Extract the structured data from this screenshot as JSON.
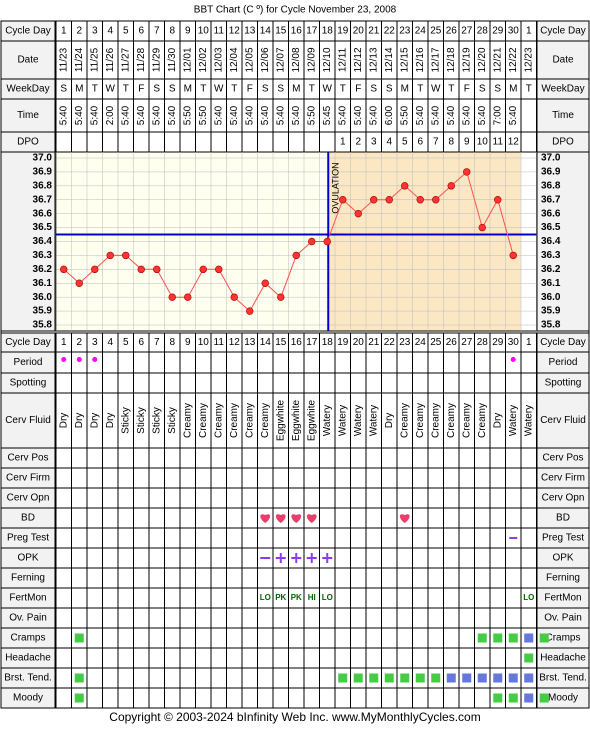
{
  "title": "BBT Chart (C º) for Cycle November 23, 2008",
  "copyright": "Copyright © 2003-2024 bInfinity Web Inc.    www.MyMonthlyCycles.com",
  "ovulation_label": "OVULATION",
  "colors": {
    "grid": "#000000",
    "label_bg": "#f2f2f2",
    "chart_pre": "#fffff0",
    "chart_post": "#fbe7c4",
    "line": "#ff5050",
    "point": "#ff3333",
    "cover": "#0000cc",
    "period": "#ff00ff",
    "heart": "#e8406a",
    "opk": "#8a3df0",
    "green": "#44cc44",
    "blue": "#6677dd",
    "fert": "#006600"
  },
  "row_labels": {
    "cycle_day": "Cycle Day",
    "date": "Date",
    "weekday": "WeekDay",
    "time": "Time",
    "dpo": "DPO",
    "period": "Period",
    "spotting": "Spotting",
    "cerv_fluid": "Cerv Fluid",
    "cerv_pos": "Cerv Pos",
    "cerv_firm": "Cerv Firm",
    "cerv_opn": "Cerv Opn",
    "bd": "BD",
    "preg_test": "Preg Test",
    "opk": "OPK",
    "ferning": "Ferning",
    "fertmon": "FertMon",
    "ov_pain": "Ov. Pain",
    "cramps": "Cramps",
    "headache": "Headache",
    "brst_tend": "Brst. Tend.",
    "moody": "Moody"
  },
  "cycle_days": [
    "1",
    "2",
    "3",
    "4",
    "5",
    "6",
    "7",
    "8",
    "9",
    "10",
    "11",
    "12",
    "13",
    "14",
    "15",
    "16",
    "17",
    "18",
    "19",
    "20",
    "21",
    "22",
    "23",
    "24",
    "25",
    "26",
    "27",
    "28",
    "29",
    "30",
    "1"
  ],
  "dates": [
    "11/23",
    "11/24",
    "11/25",
    "11/26",
    "11/27",
    "11/28",
    "11/29",
    "11/30",
    "12/01",
    "12/02",
    "12/03",
    "12/04",
    "12/05",
    "12/06",
    "12/07",
    "12/08",
    "12/09",
    "12/10",
    "12/11",
    "12/12",
    "12/13",
    "12/14",
    "12/15",
    "12/16",
    "12/17",
    "12/18",
    "12/19",
    "12/20",
    "12/21",
    "12/22",
    "12/23"
  ],
  "weekdays": [
    "S",
    "M",
    "T",
    "W",
    "T",
    "F",
    "S",
    "S",
    "M",
    "T",
    "W",
    "T",
    "F",
    "S",
    "S",
    "M",
    "T",
    "W",
    "T",
    "F",
    "S",
    "S",
    "M",
    "T",
    "W",
    "T",
    "F",
    "S",
    "S",
    "M",
    "T"
  ],
  "times": [
    "5:40",
    "5:40",
    "5:40",
    "2:00",
    "5:40",
    "5:40",
    "5:40",
    "5:40",
    "5:50",
    "5:50",
    "5:40",
    "5:40",
    "5:40",
    "5:40",
    "5:40",
    "5:40",
    "5:50",
    "5:45",
    "5:40",
    "5:40",
    "5:40",
    "6:00",
    "5:50",
    "5:40",
    "5:40",
    "5:40",
    "5:40",
    "5:40",
    "7:00",
    "5:40",
    ""
  ],
  "dpo": [
    "",
    "",
    "",
    "",
    "",
    "",
    "",
    "",
    "",
    "",
    "",
    "",
    "",
    "",
    "",
    "",
    "",
    "",
    "1",
    "2",
    "3",
    "4",
    "5",
    "6",
    "7",
    "8",
    "9",
    "10",
    "11",
    "12",
    ""
  ],
  "period": [
    true,
    true,
    true,
    false,
    false,
    false,
    false,
    false,
    false,
    false,
    false,
    false,
    false,
    false,
    false,
    false,
    false,
    false,
    false,
    false,
    false,
    false,
    false,
    false,
    false,
    false,
    false,
    false,
    false,
    true,
    false
  ],
  "cerv_fluid": [
    "Dry",
    "Dry",
    "Dry",
    "Dry",
    "Sticky",
    "Sticky",
    "Sticky",
    "Sticky",
    "Creamy",
    "Creamy",
    "Creamy",
    "Creamy",
    "Creamy",
    "Creamy",
    "Eggwhite",
    "Eggwhite",
    "Eggwhite",
    "Watery",
    "Watery",
    "Watery",
    "Watery",
    "Dry",
    "Creamy",
    "Creamy",
    "Creamy",
    "Creamy",
    "Creamy",
    "Creamy",
    "Dry",
    "Watery",
    "Watery"
  ],
  "bd": [
    false,
    false,
    false,
    false,
    false,
    false,
    false,
    false,
    false,
    false,
    false,
    false,
    false,
    true,
    true,
    true,
    true,
    false,
    false,
    false,
    false,
    false,
    true,
    false,
    false,
    false,
    false,
    false,
    false,
    false,
    false
  ],
  "preg_test": [
    "",
    "",
    "",
    "",
    "",
    "",
    "",
    "",
    "",
    "",
    "",
    "",
    "",
    "",
    "",
    "",
    "",
    "",
    "",
    "",
    "",
    "",
    "",
    "",
    "",
    "",
    "",
    "",
    "",
    "-",
    ""
  ],
  "opk": [
    "",
    "",
    "",
    "",
    "",
    "",
    "",
    "",
    "",
    "",
    "",
    "",
    "",
    "-",
    "+",
    "+",
    "+",
    "+",
    "",
    "",
    "",
    "",
    "",
    "",
    "",
    "",
    "",
    "",
    "",
    "",
    ""
  ],
  "fertmon": [
    "",
    "",
    "",
    "",
    "",
    "",
    "",
    "",
    "",
    "",
    "",
    "",
    "",
    "LO",
    "PK",
    "PK",
    "HI",
    "LO",
    "",
    "",
    "",
    "",
    "",
    "",
    "",
    "",
    "",
    "",
    "",
    "",
    "LO"
  ],
  "cramps": [
    "",
    "g",
    "",
    "",
    "",
    "",
    "",
    "",
    "",
    "",
    "",
    "",
    "",
    "",
    "",
    "",
    "",
    "",
    "",
    "",
    "",
    "",
    "",
    "",
    "",
    "",
    "",
    "g",
    "g",
    "g",
    "b",
    "g"
  ],
  "headache": [
    "",
    "",
    "",
    "",
    "",
    "",
    "",
    "",
    "",
    "",
    "",
    "",
    "",
    "",
    "",
    "",
    "",
    "",
    "",
    "",
    "",
    "",
    "",
    "",
    "",
    "",
    "",
    "",
    "",
    "",
    "g"
  ],
  "brst_tend": [
    "",
    "g",
    "",
    "",
    "",
    "",
    "",
    "",
    "",
    "",
    "",
    "",
    "",
    "",
    "",
    "",
    "",
    "",
    "g",
    "g",
    "g",
    "g",
    "g",
    "g",
    "g",
    "b",
    "b",
    "b",
    "b",
    "b",
    "b"
  ],
  "moody": [
    "",
    "g",
    "",
    "",
    "",
    "",
    "",
    "",
    "",
    "",
    "",
    "",
    "",
    "",
    "",
    "",
    "",
    "",
    "",
    "",
    "",
    "",
    "",
    "",
    "",
    "",
    "",
    "",
    "g",
    "g",
    "b",
    "g"
  ],
  "chart_data": {
    "type": "line",
    "title": "BBT Chart (C º) for Cycle November 23, 2008",
    "xlabel": "Cycle Day",
    "ylabel": "",
    "ylim": [
      35.8,
      37.0
    ],
    "y_ticks": [
      "37.0",
      "36.9",
      "36.8",
      "36.7",
      "36.6",
      "36.5",
      "36.4",
      "36.3",
      "36.2",
      "36.1",
      "36.0",
      "35.9",
      "35.8"
    ],
    "x": [
      1,
      2,
      3,
      4,
      5,
      6,
      7,
      8,
      9,
      10,
      11,
      12,
      13,
      14,
      15,
      16,
      17,
      18,
      19,
      20,
      21,
      22,
      23,
      24,
      25,
      26,
      27,
      28,
      29,
      30
    ],
    "series": [
      {
        "values": [
          36.2,
          36.1,
          36.2,
          36.3,
          36.3,
          36.2,
          36.2,
          36.0,
          36.0,
          36.2,
          36.2,
          36.0,
          35.9,
          36.1,
          36.0,
          36.3,
          36.4,
          36.4,
          36.7,
          36.6,
          36.7,
          36.7,
          36.8,
          36.7,
          36.7,
          36.8,
          36.9,
          36.5,
          36.7,
          36.3
        ]
      }
    ],
    "coverline": 36.45,
    "ovulation_day": 18,
    "grid": true
  }
}
